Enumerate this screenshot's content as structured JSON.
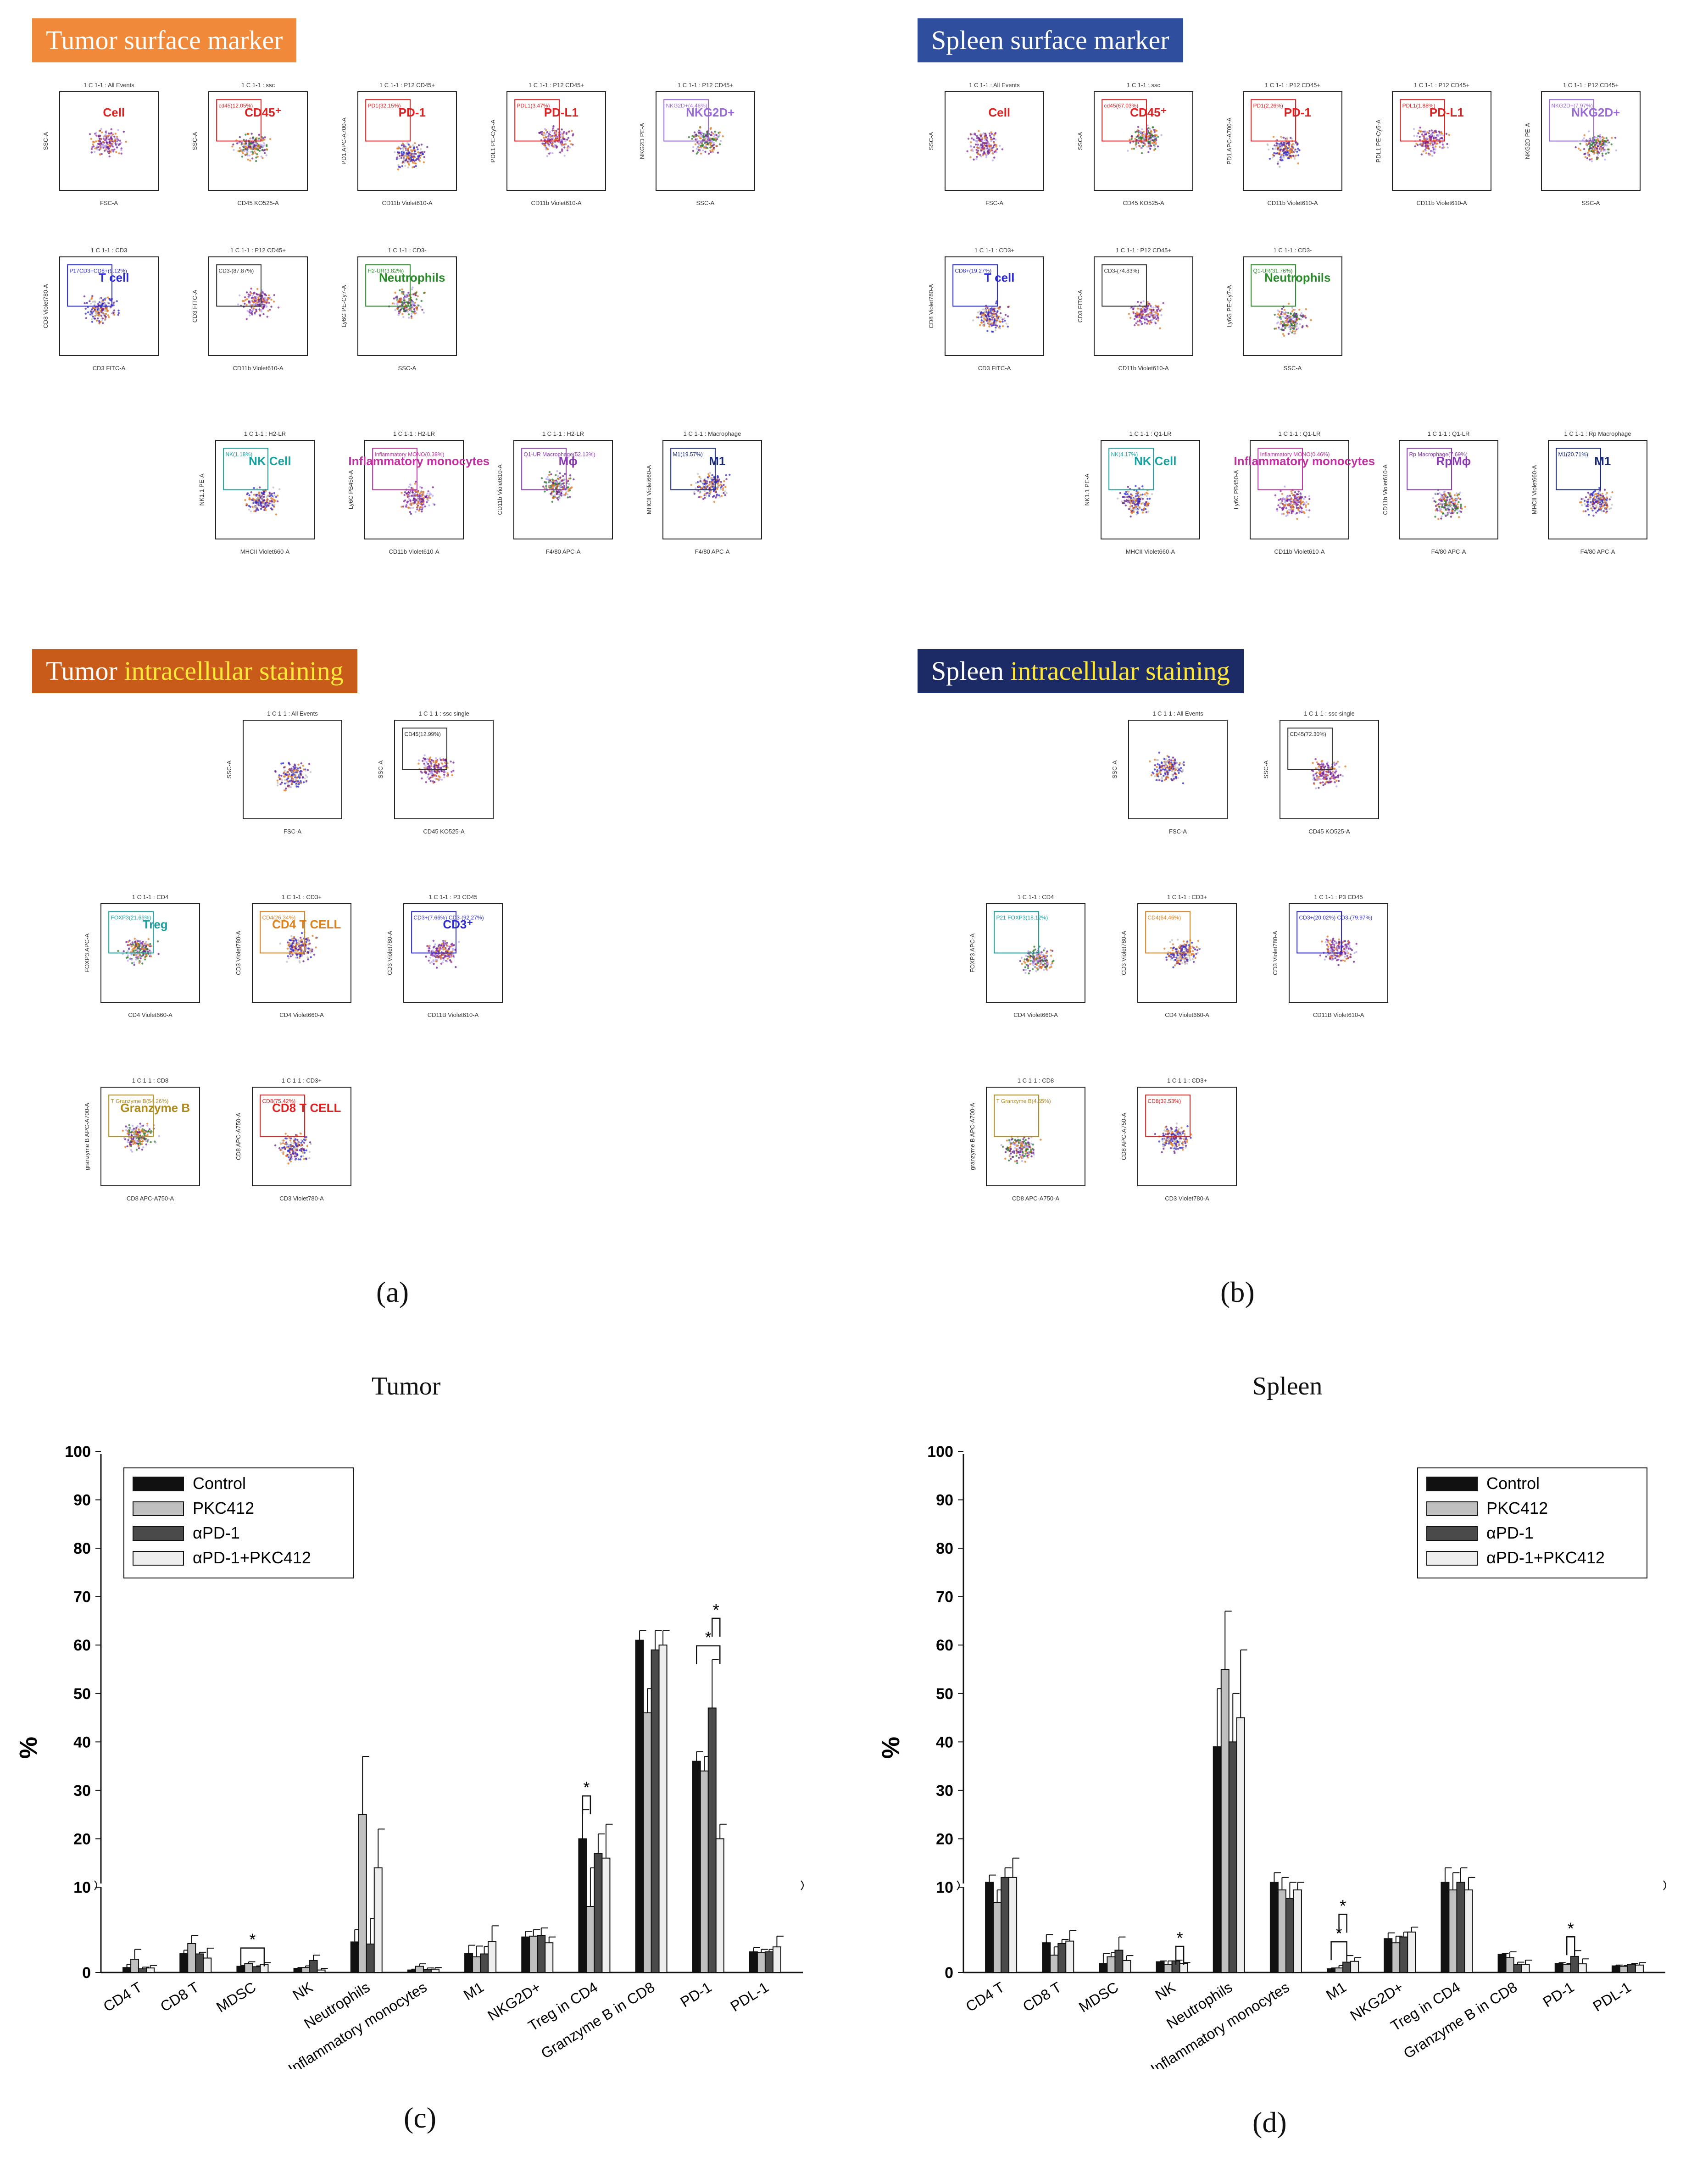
{
  "colors": {
    "tumor_banner": "#f08a3a",
    "tumor_is_banner": "#c85a1a",
    "spleen_banner": "#2f4f9e",
    "spleen_is_banner": "#1c2a66",
    "highlight_text": "#ffe83a",
    "control": "#111111",
    "pkc412": "#c0c0c0",
    "apd1": "#4a4a4a",
    "apd1_pkc412": "#eeeeee"
  },
  "panels": {
    "a": {
      "letter": "(a)",
      "banner_surface": "Tumor surface marker",
      "banner_ics_prefix": "Tumor ",
      "banner_ics_highlight": "intracellular staining",
      "surface_plots": [
        {
          "header": "1 C 1-1 : All Events",
          "xaxis": "FSC-A",
          "yaxis": "SSC-A",
          "gate": "",
          "label": "Cell",
          "label_color": "#e02020"
        },
        {
          "header": "1 C 1-1 : ssc",
          "xaxis": "CD45 KO525-A",
          "yaxis": "SSC-A",
          "gate": "cd45(12.05%)",
          "label": "CD45⁺",
          "label_color": "#e02020"
        },
        {
          "header": "1 C 1-1 : P12 CD45+",
          "xaxis": "CD11b Violet610-A",
          "yaxis": "PD1 APC-A700-A",
          "gate": "PD1(32.15%)",
          "label": "PD-1",
          "label_color": "#e02020"
        },
        {
          "header": "1 C 1-1 : P12 CD45+",
          "xaxis": "CD11b Violet610-A",
          "yaxis": "PDL1 PE-Cy5-A",
          "gate": "PDL1(3.47%)",
          "label": "PD-L1",
          "label_color": "#e02020"
        },
        {
          "header": "1 C 1-1 : P12 CD45+",
          "xaxis": "SSC-A",
          "yaxis": "NKG2D PE-A",
          "gate": "NKG2D+(4.46%)",
          "label": "NKG2D+",
          "label_color": "#9a6ad8"
        },
        {
          "header": "1 C 1-1 : CD3",
          "xaxis": "CD3 FITC-A",
          "yaxis": "CD8 Violet780-A",
          "gate": "P17CD3+CD8+(9.12%)",
          "label": "T cell",
          "label_color": "#2a2ad0"
        },
        {
          "header": "1 C 1-1 : P12 CD45+",
          "xaxis": "CD11b Violet610-A",
          "yaxis": "CD3 FITC-A",
          "gate": "CD3-(87.87%)",
          "label": "",
          "label_color": "#333333"
        },
        {
          "header": "1 C 1-1 : CD3-",
          "xaxis": "SSC-A",
          "yaxis": "Ly6G PE-Cy7-A",
          "gate": "H2-UR(3.82%)",
          "label": "Neutrophils",
          "label_color": "#2a8a2a"
        },
        {
          "header": "1 C 1-1 : H2-LR",
          "xaxis": "MHCII Violet660-A",
          "yaxis": "NK1.1 PE-A",
          "gate": "NK(1.18%)",
          "label": "NK Cell",
          "label_color": "#1aa0a0"
        },
        {
          "header": "1 C 1-1 : H2-LR",
          "xaxis": "CD11b Violet610-A",
          "yaxis": "Ly6C PB450-A",
          "gate": "Inflammatory MONO(0.38%)",
          "label": "Inflammatory monocytes",
          "label_color": "#c030a0"
        },
        {
          "header": "1 C 1-1 : H2-LR",
          "xaxis": "F4/80 APC-A",
          "yaxis": "CD11b Violet610-A",
          "gate": "Q1-UR Macrophage(52.13%)",
          "label": "Mϕ",
          "label_color": "#8a3ab0"
        },
        {
          "header": "1 C 1-1 : Macrophage",
          "xaxis": "F4/80 APC-A",
          "yaxis": "MHCII Violet660-A",
          "gate": "M1(19.57%)",
          "label": "M1",
          "label_color": "#1a2a7a"
        }
      ],
      "ics_plots": [
        {
          "header": "1 C 1-1 : All Events",
          "xaxis": "FSC-A",
          "yaxis": "SSC-A",
          "gate": "",
          "label": "",
          "label_color": "#333333"
        },
        {
          "header": "1 C 1-1 : ssc single",
          "xaxis": "CD45 KO525-A",
          "yaxis": "SSC-A",
          "gate": "CD45(12.99%)",
          "label": "",
          "label_color": "#333333"
        },
        {
          "header": "1 C 1-1 : CD4",
          "xaxis": "CD4 Violet660-A",
          "yaxis": "FOXP3 APC-A",
          "gate": "FOXP3(21.66%)",
          "label": "Treg",
          "label_color": "#1aa0a0"
        },
        {
          "header": "1 C 1-1 : CD3+",
          "xaxis": "CD4 Violet660-A",
          "yaxis": "CD3 Violet780-A",
          "gate": "CD4(26.34%)",
          "label": "CD4 T CELL",
          "label_color": "#e0801a"
        },
        {
          "header": "1 C 1-1 : P3 CD45",
          "xaxis": "CD11B Violet610-A",
          "yaxis": "CD3 Violet780-A",
          "gate": "CD3+(7.66%)  CD3-(92.27%)",
          "label": "CD3⁺",
          "label_color": "#2a2ad0"
        },
        {
          "header": "1 C 1-1 : CD8",
          "xaxis": "CD8 APC-A750-A",
          "yaxis": "granzyme B APC-A700-A",
          "gate": "T Granzyme B(54.26%)",
          "label": "Granzyme B",
          "label_color": "#b08a1a"
        },
        {
          "header": "1 C 1-1 : CD3+",
          "xaxis": "CD3 Violet780-A",
          "yaxis": "CD8 APC-A750-A",
          "gate": "CD8(75.42%)",
          "label": "CD8 T CELL",
          "label_color": "#e02020"
        }
      ]
    },
    "b": {
      "letter": "(b)",
      "banner_surface": "Spleen surface marker",
      "banner_ics_prefix": "Spleen ",
      "banner_ics_highlight": "intracellular staining",
      "surface_plots": [
        {
          "header": "1 C 1-1 : All Events",
          "xaxis": "FSC-A",
          "yaxis": "SSC-A",
          "gate": "",
          "label": "Cell",
          "label_color": "#e02020"
        },
        {
          "header": "1 C 1-1 : ssc",
          "xaxis": "CD45 KO525-A",
          "yaxis": "SSC-A",
          "gate": "cd45(67.03%)",
          "label": "CD45⁺",
          "label_color": "#e02020"
        },
        {
          "header": "1 C 1-1 : P12 CD45+",
          "xaxis": "CD11b Violet610-A",
          "yaxis": "PD1 APC-A700-A",
          "gate": "PD1(2.26%)",
          "label": "PD-1",
          "label_color": "#e02020"
        },
        {
          "header": "1 C 1-1 : P12 CD45+",
          "xaxis": "CD11b Violet610-A",
          "yaxis": "PDL1 PE-Cy5-A",
          "gate": "PDL1(1.88%)",
          "label": "PD-L1",
          "label_color": "#e02020"
        },
        {
          "header": "1 C 1-1 : P12 CD45+",
          "xaxis": "SSC-A",
          "yaxis": "NKG2D PE-A",
          "gate": "NKG2D+(7.97%)",
          "label": "NKG2D+",
          "label_color": "#9a6ad8"
        },
        {
          "header": "1 C 1-1 : CD3+",
          "xaxis": "CD3 FITC-A",
          "yaxis": "CD8 Violet780-A",
          "gate": "CD8+(19.27%)",
          "label": "T cell",
          "label_color": "#2a2ad0"
        },
        {
          "header": "1 C 1-1 : P12 CD45+",
          "xaxis": "CD11b Violet610-A",
          "yaxis": "CD3 FITC-A",
          "gate": "CD3-(74.83%)",
          "label": "",
          "label_color": "#333333"
        },
        {
          "header": "1 C 1-1 : CD3-",
          "xaxis": "SSC-A",
          "yaxis": "Ly6G PE-Cy7-A",
          "gate": "Q1-UR(31.76%)",
          "label": "Neutrophils",
          "label_color": "#2a8a2a"
        },
        {
          "header": "1 C 1-1 : Q1-LR",
          "xaxis": "MHCII Violet660-A",
          "yaxis": "NK1.1 PE-A",
          "gate": "NK(4.17%)",
          "label": "NK Cell",
          "label_color": "#1aa0a0"
        },
        {
          "header": "1 C 1-1 : Q1-LR",
          "xaxis": "CD11b Violet610-A",
          "yaxis": "Ly6C PB450-A",
          "gate": "Inflammatory MONO(0.46%)",
          "label": "Inflammatory monocytes",
          "label_color": "#c030a0"
        },
        {
          "header": "1 C 1-1 : Q1-LR",
          "xaxis": "F4/80 APC-A",
          "yaxis": "CD11b Violet610-A",
          "gate": "Rp Macrophage(7.69%)",
          "label": "RpMϕ",
          "label_color": "#8a3ab0"
        },
        {
          "header": "1 C 1-1 : Rp Macrophage",
          "xaxis": "F4/80 APC-A",
          "yaxis": "MHCII Violet660-A",
          "gate": "M1(20.71%)",
          "label": "M1",
          "label_color": "#1a2a7a"
        }
      ],
      "ics_plots": [
        {
          "header": "1 C 1-1 : All Events",
          "xaxis": "FSC-A",
          "yaxis": "SSC-A",
          "gate": "",
          "label": "",
          "label_color": "#333333"
        },
        {
          "header": "1 C 1-1 : ssc single",
          "xaxis": "CD45 KO525-A",
          "yaxis": "SSC-A",
          "gate": "CD45(72.30%)",
          "label": "",
          "label_color": "#333333"
        },
        {
          "header": "1 C 1-1 : CD4",
          "xaxis": "CD4 Violet660-A",
          "yaxis": "FOXP3 APC-A",
          "gate": "P21 FOXP3(18.12%)",
          "label": "",
          "label_color": "#1aa0a0"
        },
        {
          "header": "1 C 1-1 : CD3+",
          "xaxis": "CD4 Violet660-A",
          "yaxis": "CD3 Violet780-A",
          "gate": "CD4(64.46%)",
          "label": "",
          "label_color": "#e0801a"
        },
        {
          "header": "1 C 1-1 : P3 CD45",
          "xaxis": "CD11B Violet610-A",
          "yaxis": "CD3 Violet780-A",
          "gate": "CD3+(20.02%)  CD3-(79.97%)",
          "label": "",
          "label_color": "#2a2ad0"
        },
        {
          "header": "1 C 1-1 : CD8",
          "xaxis": "CD8 APC-A750-A",
          "yaxis": "granzyme B APC-A700-A",
          "gate": "T Granzyme B(4.55%)",
          "label": "",
          "label_color": "#b08a1a"
        },
        {
          "header": "1 C 1-1 : CD3+",
          "xaxis": "CD3 Violet780-A",
          "yaxis": "CD8 APC-A750-A",
          "gate": "CD8(32.53%)",
          "label": "",
          "label_color": "#e02020"
        }
      ]
    },
    "c": {
      "letter": "(c)"
    },
    "d": {
      "letter": "(d)"
    }
  },
  "chart_data": [
    {
      "id": "tumor",
      "type": "bar",
      "title": "Tumor",
      "ylabel": "%",
      "ylim": [
        0,
        100
      ],
      "y_break": 10,
      "yticks": [
        0,
        10,
        20,
        30,
        40,
        50,
        60,
        70,
        80,
        90,
        100
      ],
      "categories": [
        "CD4 T",
        "CD8 T",
        "MDSC",
        "NK",
        "Neutrophils",
        "Inflammatory monocytes",
        "M1",
        "NKG2D+",
        "Treg in CD4",
        "Granzyme B in CD8",
        "PD-1",
        "PDL-1"
      ],
      "legend": [
        "Control",
        "PKC412",
        "αPD-1",
        "αPD-1+PKC412"
      ],
      "series": [
        {
          "name": "Control",
          "values": [
            0.6,
            2.3,
            0.75,
            0.5,
            3.7,
            0.3,
            2.3,
            4.3,
            20,
            61,
            36,
            2.5
          ],
          "errors": [
            0.4,
            0.4,
            0.1,
            0.1,
            1.5,
            0.1,
            1.0,
            0.7,
            6,
            2,
            2,
            0.5
          ]
        },
        {
          "name": "PKC412",
          "values": [
            1.6,
            3.5,
            1.1,
            0.6,
            25,
            0.75,
            1.9,
            4.4,
            8,
            46,
            34,
            2.4
          ],
          "errors": [
            1.2,
            1.0,
            0.2,
            0.2,
            12,
            0.3,
            1.3,
            0.8,
            6,
            5,
            3,
            0.4
          ]
        },
        {
          "name": "αPD-1",
          "values": [
            0.45,
            2.25,
            0.7,
            1.45,
            3.45,
            0.35,
            2.25,
            4.5,
            17,
            59,
            47,
            2.5
          ],
          "errors": [
            0.2,
            0.2,
            0.1,
            0.65,
            3.1,
            0.2,
            0.9,
            0.9,
            4,
            4,
            10,
            0.3
          ]
        },
        {
          "name": "αPD-1+PKC412",
          "values": [
            0.55,
            1.75,
            1.0,
            0.3,
            14,
            0.4,
            3.75,
            3.6,
            16,
            60,
            20,
            3.1
          ],
          "errors": [
            0.3,
            1.2,
            0.2,
            0.2,
            8,
            0.2,
            1.9,
            0.7,
            7,
            3,
            3,
            1.3
          ]
        }
      ],
      "annotations": [
        {
          "label": "*",
          "category": "MDSC",
          "between": [
            "Control",
            "αPD-1+PKC412"
          ]
        },
        {
          "label": "*",
          "category": "Treg in CD4",
          "between": [
            "Control",
            "PKC412"
          ]
        },
        {
          "label": "*",
          "category": "PD-1",
          "between": [
            "Control",
            "αPD-1+PKC412"
          ]
        },
        {
          "label": "*",
          "category": "PD-1",
          "between": [
            "αPD-1",
            "αPD-1+PKC412"
          ]
        }
      ]
    },
    {
      "id": "spleen",
      "type": "bar",
      "title": "Spleen",
      "ylabel": "%",
      "ylim": [
        0,
        100
      ],
      "y_break": 10,
      "yticks": [
        0,
        10,
        20,
        30,
        40,
        50,
        60,
        70,
        80,
        90,
        100
      ],
      "categories": [
        "CD4 T",
        "CD8 T",
        "MDSC",
        "NK",
        "Neutrophils",
        "Inflammatory monocytes",
        "M1",
        "NKG2D+",
        "Treg in CD4",
        "Granzyme B in CD8",
        "PD-1",
        "PDL-1"
      ],
      "legend": [
        "Control",
        "PKC412",
        "αPD-1",
        "αPD-1+PKC412"
      ],
      "series": [
        {
          "name": "Control",
          "values": [
            11,
            3.6,
            1.1,
            1.3,
            39,
            11,
            0.45,
            4.1,
            11,
            2.2,
            1.1,
            0.8
          ],
          "errors": [
            1.5,
            1.0,
            1.2,
            0.1,
            12,
            2,
            0.1,
            0.7,
            3,
            0.1,
            0.1,
            0.1
          ]
        },
        {
          "name": "PKC412",
          "values": [
            8.5,
            2.1,
            1.9,
            1.0,
            55,
            10,
            0.55,
            3.6,
            10,
            1.8,
            1.0,
            0.75
          ],
          "errors": [
            1.5,
            1.0,
            0.5,
            0.4,
            12,
            2,
            0.3,
            0.8,
            3,
            0.7,
            0.1,
            0.1
          ]
        },
        {
          "name": "αPD-1",
          "values": [
            12,
            3.5,
            2.7,
            1.4,
            40,
            9,
            1.25,
            4.3,
            11,
            0.95,
            1.95,
            1.0
          ],
          "errors": [
            2,
            0.5,
            1.6,
            0.1,
            10,
            2,
            0.8,
            0.6,
            3,
            0.3,
            0.7,
            0.1
          ]
        },
        {
          "name": "αPD-1+PKC412",
          "values": [
            12,
            3.8,
            1.45,
            1.1,
            45,
            10,
            1.35,
            4.9,
            10,
            1.0,
            1.05,
            0.9
          ],
          "errors": [
            4,
            1.3,
            0.6,
            0.1,
            14,
            1,
            0.45,
            0.6,
            2,
            0.5,
            0.6,
            0.3
          ]
        }
      ],
      "annotations": [
        {
          "label": "*",
          "category": "NK",
          "between": [
            "αPD-1",
            "αPD-1+PKC412"
          ]
        },
        {
          "label": "*",
          "category": "M1",
          "between": [
            "Control",
            "αPD-1"
          ]
        },
        {
          "label": "*",
          "category": "M1",
          "between": [
            "PKC412",
            "αPD-1"
          ]
        },
        {
          "label": "*",
          "category": "PD-1",
          "between": [
            "PKC412",
            "αPD-1"
          ]
        }
      ]
    }
  ]
}
